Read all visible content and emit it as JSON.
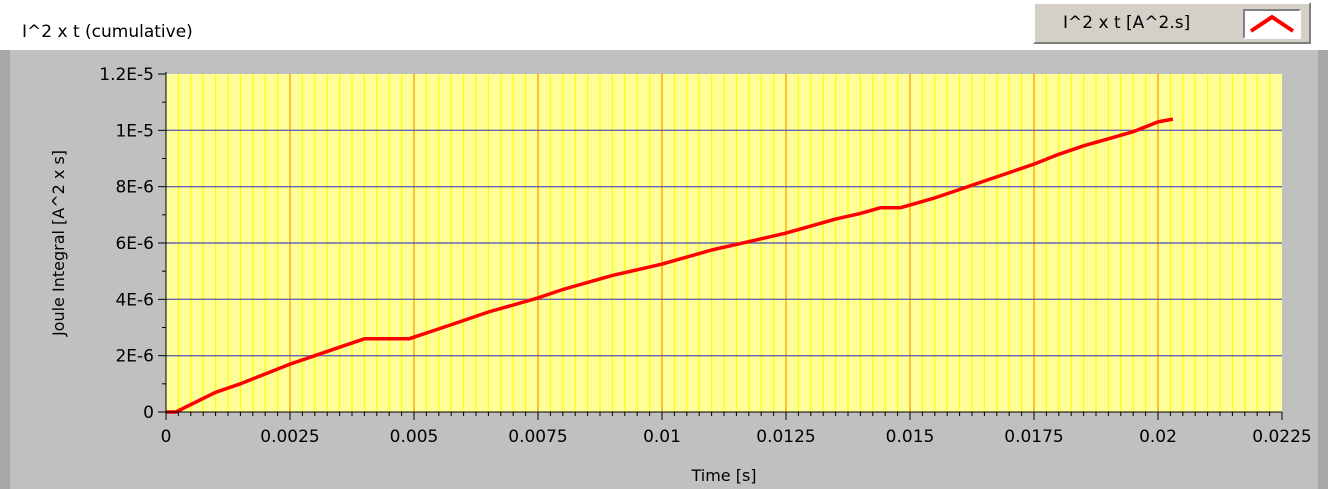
{
  "window": {
    "title": "I^2 x t (cumulative)"
  },
  "legend": {
    "label": "I^2 x t [A^2.s]",
    "color": "#ff0000"
  },
  "colors": {
    "plot_bg": "#ffff99",
    "grid_major": "#ffa500",
    "grid_minor": "#ffff00",
    "grid_horizontal": "#6666aa",
    "series": "#ff0000",
    "frame": "#c0c0c0"
  },
  "chart_data": {
    "type": "line",
    "xlabel": "Time [s]",
    "ylabel": "Joule Integral [A^2 x s]",
    "xlim": [
      0,
      0.0225
    ],
    "ylim": [
      0,
      1.2e-05
    ],
    "x_ticks": [
      0,
      0.0025,
      0.005,
      0.0075,
      0.01,
      0.0125,
      0.015,
      0.0175,
      0.02,
      0.0225
    ],
    "x_tick_labels": [
      "0",
      "0.0025",
      "0.005",
      "0.0075",
      "0.01",
      "0.0125",
      "0.015",
      "0.0175",
      "0.02",
      "0.0225"
    ],
    "y_ticks": [
      0,
      2e-06,
      4e-06,
      6e-06,
      8e-06,
      1e-05,
      1.2e-05
    ],
    "y_tick_labels": [
      "0",
      "2E-6",
      "4E-6",
      "6E-6",
      "8E-6",
      "1E-5",
      "1.2E-5"
    ],
    "grid": true,
    "legend_position": "top-right",
    "series": [
      {
        "name": "I^2 x t [A^2.s]",
        "x": [
          0,
          0.0002,
          0.0006,
          0.001,
          0.0015,
          0.002,
          0.0025,
          0.003,
          0.0035,
          0.004,
          0.0044,
          0.0049,
          0.0055,
          0.006,
          0.0065,
          0.007,
          0.0075,
          0.008,
          0.0085,
          0.009,
          0.0095,
          0.01,
          0.0105,
          0.011,
          0.0115,
          0.012,
          0.0125,
          0.013,
          0.0135,
          0.014,
          0.0144,
          0.0148,
          0.0155,
          0.016,
          0.0165,
          0.017,
          0.0175,
          0.018,
          0.0185,
          0.019,
          0.0195,
          0.02,
          0.0203
        ],
        "y": [
          0,
          0,
          3.5e-07,
          7e-07,
          1e-06,
          1.35e-06,
          1.7e-06,
          2e-06,
          2.3e-06,
          2.6e-06,
          2.6e-06,
          2.6e-06,
          2.95e-06,
          3.25e-06,
          3.55e-06,
          3.8e-06,
          4.05e-06,
          4.35e-06,
          4.6e-06,
          4.85e-06,
          5.05e-06,
          5.25e-06,
          5.5e-06,
          5.75e-06,
          5.95e-06,
          6.15e-06,
          6.35e-06,
          6.6e-06,
          6.85e-06,
          7.05e-06,
          7.25e-06,
          7.25e-06,
          7.6e-06,
          7.9e-06,
          8.2e-06,
          8.5e-06,
          8.8e-06,
          9.15e-06,
          9.45e-06,
          9.7e-06,
          9.95e-06,
          1.03e-05,
          1.04e-05
        ]
      }
    ]
  }
}
